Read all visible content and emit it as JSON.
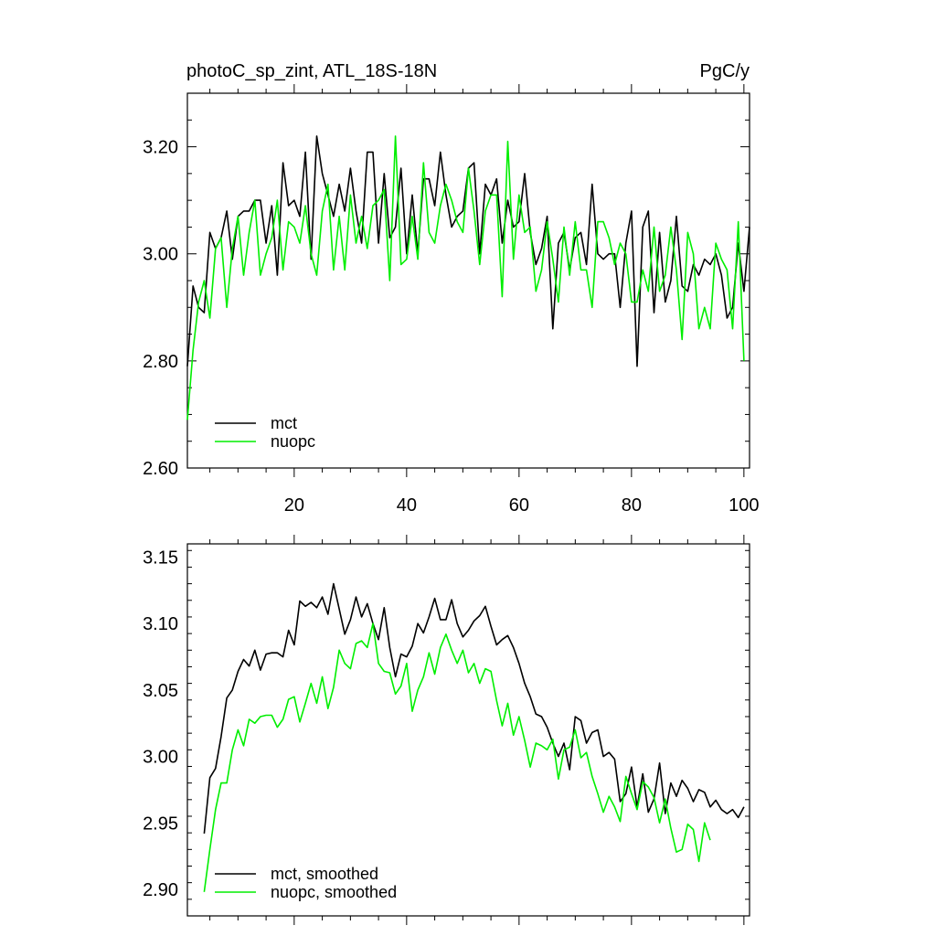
{
  "chart_data": [
    {
      "type": "line",
      "title": "photoC_sp_zint, ATL_18S-18N",
      "units_label": "PgC/y",
      "xlim": [
        1,
        101
      ],
      "ylim": [
        2.6,
        3.3
      ],
      "x_ticks": [
        20,
        40,
        60,
        80,
        100
      ],
      "y_ticks": [
        "2.60",
        "2.80",
        "3.00",
        "3.20"
      ],
      "y_tick_values": [
        2.6,
        2.8,
        3.0,
        3.2
      ],
      "legend_location": "bottom-left",
      "colors": {
        "mct": "#000000",
        "nuopc": "#00ee00"
      },
      "series": [
        {
          "name": "mct",
          "x_start": 1,
          "values": [
            2.79,
            2.94,
            2.9,
            2.89,
            3.04,
            3.01,
            3.03,
            3.08,
            2.99,
            3.07,
            3.08,
            3.08,
            3.1,
            3.1,
            3.02,
            3.09,
            2.96,
            3.17,
            3.09,
            3.1,
            3.07,
            3.19,
            2.99,
            3.22,
            3.15,
            3.11,
            3.07,
            3.13,
            3.08,
            3.16,
            3.08,
            3.02,
            3.19,
            3.19,
            3.02,
            3.15,
            3.03,
            3.05,
            3.16,
            3.0,
            3.11,
            3.0,
            3.14,
            3.14,
            3.09,
            3.19,
            3.11,
            3.05,
            3.07,
            3.08,
            3.16,
            3.17,
            3.0,
            3.13,
            3.11,
            3.14,
            3.02,
            3.1,
            3.05,
            3.06,
            3.15,
            3.04,
            2.98,
            3.01,
            3.07,
            2.86,
            3.02,
            3.04,
            2.97,
            3.03,
            3.04,
            2.98,
            3.13,
            3.0,
            2.99,
            3.0,
            3.0,
            2.9,
            3.02,
            3.08,
            2.79,
            3.05,
            3.08,
            2.89,
            3.04,
            2.91,
            2.95,
            3.07,
            2.94,
            2.93,
            2.98,
            2.96,
            2.99,
            2.98,
            3.0,
            2.96,
            2.88,
            2.9,
            3.02,
            2.93,
            3.05
          ]
        },
        {
          "name": "nuopc",
          "x_start": 1,
          "values": [
            2.69,
            2.82,
            2.91,
            2.95,
            2.88,
            3.01,
            3.03,
            2.9,
            3.01,
            3.07,
            2.96,
            3.04,
            3.1,
            2.96,
            3.0,
            3.03,
            3.1,
            2.97,
            3.06,
            3.05,
            3.02,
            3.09,
            3.0,
            2.96,
            3.08,
            3.13,
            2.97,
            3.07,
            2.97,
            3.11,
            3.02,
            3.07,
            3.01,
            3.09,
            3.1,
            3.12,
            2.95,
            3.22,
            2.98,
            2.99,
            3.07,
            2.99,
            3.17,
            3.04,
            3.02,
            3.09,
            3.13,
            3.1,
            3.06,
            3.04,
            3.16,
            3.08,
            2.98,
            3.08,
            3.11,
            3.11,
            2.92,
            3.21,
            2.99,
            3.11,
            3.04,
            3.05,
            2.93,
            2.97,
            3.06,
            2.99,
            2.91,
            3.05,
            2.96,
            3.06,
            2.97,
            2.97,
            2.9,
            3.06,
            3.06,
            3.03,
            2.98,
            3.02,
            3.0,
            2.91,
            2.91,
            2.97,
            2.93,
            3.05,
            2.93,
            2.96,
            3.05,
            2.97,
            2.84,
            3.04,
            3.0,
            2.86,
            2.9,
            2.86,
            3.02,
            2.99,
            2.97,
            2.86,
            3.06,
            2.8
          ]
        }
      ]
    },
    {
      "type": "line",
      "xlim": [
        1,
        101
      ],
      "ylim": [
        2.88,
        3.16
      ],
      "x_ticks": [
        20,
        40,
        60,
        80,
        100
      ],
      "y_ticks": [
        "2.90",
        "2.95",
        "3.00",
        "3.05",
        "3.10",
        "3.15"
      ],
      "y_tick_values": [
        2.9,
        2.95,
        3.0,
        3.05,
        3.1,
        3.15
      ],
      "legend_location": "bottom-left",
      "colors": {
        "mct": "#000000",
        "nuopc": "#00ee00"
      },
      "series": [
        {
          "name": "mct, smoothed",
          "x_start": 4,
          "values": [
            2.942,
            2.984,
            2.991,
            3.015,
            3.044,
            3.05,
            3.064,
            3.073,
            3.068,
            3.08,
            3.065,
            3.077,
            3.078,
            3.078,
            3.075,
            3.095,
            3.084,
            3.117,
            3.113,
            3.116,
            3.112,
            3.12,
            3.107,
            3.13,
            3.111,
            3.092,
            3.103,
            3.12,
            3.105,
            3.115,
            3.1,
            3.088,
            3.112,
            3.082,
            3.06,
            3.077,
            3.075,
            3.083,
            3.1,
            3.093,
            3.105,
            3.119,
            3.103,
            3.103,
            3.118,
            3.1,
            3.09,
            3.095,
            3.102,
            3.106,
            3.113,
            3.098,
            3.084,
            3.088,
            3.091,
            3.082,
            3.07,
            3.055,
            3.045,
            3.032,
            3.03,
            3.022,
            3.01,
            3.0,
            3.01,
            2.99,
            3.03,
            3.027,
            3.01,
            3.018,
            3.02,
            3.0,
            3.003,
            2.998,
            2.966,
            2.972,
            2.992,
            2.962,
            2.987,
            2.958,
            2.968,
            2.995,
            2.957,
            2.98,
            2.97,
            2.982,
            2.976,
            2.966,
            2.975,
            2.973,
            2.962,
            2.967,
            2.96,
            2.957,
            2.96,
            2.954,
            2.962
          ]
        },
        {
          "name": "nuopc, smoothed",
          "x_start": 4,
          "values": [
            2.898,
            2.93,
            2.96,
            2.98,
            2.98,
            3.005,
            3.02,
            3.008,
            3.028,
            3.025,
            3.03,
            3.031,
            3.031,
            3.022,
            3.028,
            3.043,
            3.045,
            3.026,
            3.04,
            3.055,
            3.04,
            3.06,
            3.036,
            3.052,
            3.08,
            3.07,
            3.066,
            3.085,
            3.087,
            3.082,
            3.1,
            3.07,
            3.064,
            3.063,
            3.047,
            3.053,
            3.07,
            3.034,
            3.05,
            3.06,
            3.078,
            3.062,
            3.082,
            3.092,
            3.08,
            3.07,
            3.08,
            3.063,
            3.07,
            3.055,
            3.066,
            3.064,
            3.042,
            3.023,
            3.04,
            3.016,
            3.03,
            3.012,
            2.992,
            3.01,
            3.008,
            3.005,
            3.013,
            2.983,
            3.005,
            3.007,
            3.02,
            2.999,
            3.003,
            2.985,
            2.972,
            2.958,
            2.97,
            2.962,
            2.951,
            2.985,
            2.972,
            2.96,
            2.981,
            2.977,
            2.969,
            2.95,
            2.968,
            2.946,
            2.928,
            2.93,
            2.949,
            2.945,
            2.921,
            2.95,
            2.937
          ]
        }
      ]
    }
  ]
}
